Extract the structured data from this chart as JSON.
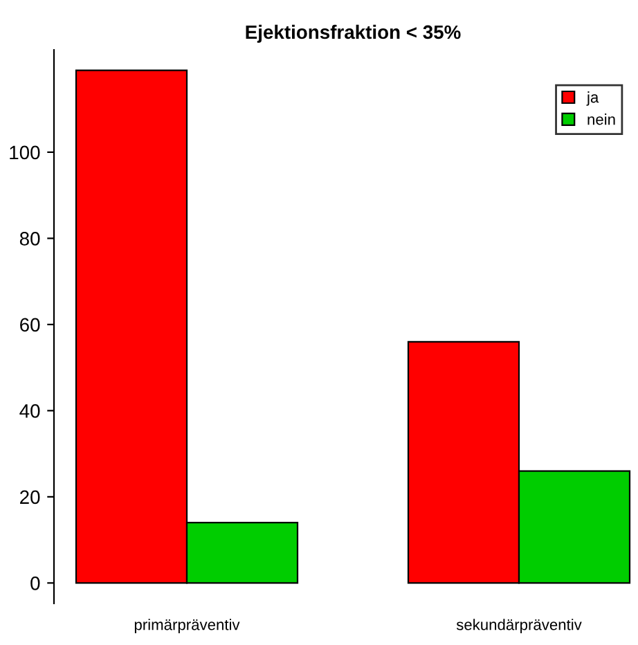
{
  "chart_data": {
    "type": "bar",
    "title": "Ejektionsfraktion < 35%",
    "categories": [
      "primärpräventiv",
      "sekundärpräventiv"
    ],
    "series": [
      {
        "name": "ja",
        "color": "#ff0000",
        "values": [
          119,
          56
        ]
      },
      {
        "name": "nein",
        "color": "#00cd00",
        "values": [
          14,
          26
        ]
      }
    ],
    "ylim": [
      -4.76,
      123.76
    ],
    "yticks": [
      0,
      20,
      40,
      60,
      80,
      100
    ],
    "grid": false,
    "legend": "top right"
  }
}
